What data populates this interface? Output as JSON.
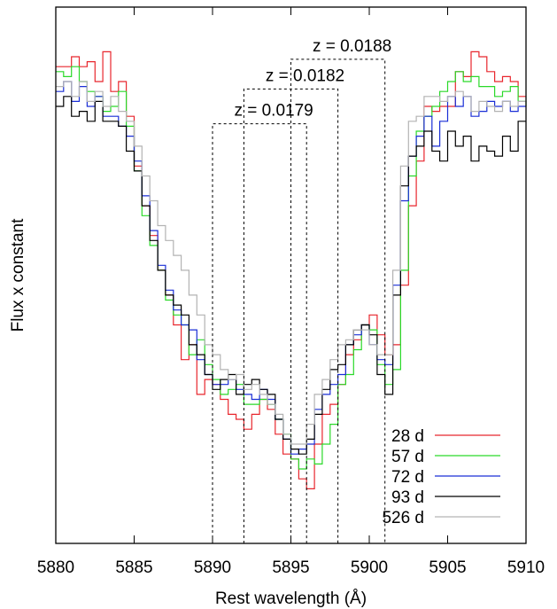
{
  "chart_data": {
    "type": "line",
    "xlabel": "Rest wavelength (Å)",
    "ylabel": "Flux x constant",
    "xlim": [
      5880,
      5910
    ],
    "ylim": [
      0,
      1.08
    ],
    "x_ticks": [
      "5880",
      "5885",
      "5890",
      "5895",
      "5900",
      "5905",
      "5910"
    ],
    "x_tick_values": [
      5880,
      5885,
      5890,
      5895,
      5900,
      5905,
      5910
    ],
    "y_ticks_shown": false,
    "legend_position": "bottom-right",
    "annotations": [
      {
        "label": "z = 0.0179",
        "lines": [
          5890,
          5896
        ]
      },
      {
        "label": "z = 0.0182",
        "lines": [
          5892,
          5898
        ]
      },
      {
        "label": "z = 0.0188",
        "lines": [
          5895,
          5901
        ]
      }
    ],
    "annotation_heights": [
      0.845,
      0.915,
      0.975
    ],
    "series": [
      {
        "name": "28 d",
        "color": "#e8262d",
        "x": [
          5880,
          5880.5,
          5881,
          5881.5,
          5882,
          5882.5,
          5883,
          5883.5,
          5884,
          5884.5,
          5885,
          5885.5,
          5886,
          5886.5,
          5887,
          5887.5,
          5888,
          5888.5,
          5889,
          5889.5,
          5890,
          5890.5,
          5891,
          5891.5,
          5892,
          5892.5,
          5893,
          5893.5,
          5894,
          5894.5,
          5895,
          5895.5,
          5896,
          5896.5,
          5897,
          5897.5,
          5898,
          5898.5,
          5899,
          5899.5,
          5900,
          5900.5,
          5901,
          5901.5,
          5902,
          5902.5,
          5903,
          5903.5,
          5904,
          5904.5,
          5905,
          5905.5,
          5906,
          5906.5,
          5907,
          5907.5,
          5908,
          5908.5,
          5909,
          5909.5,
          5910
        ],
        "y": [
          0.96,
          0.96,
          0.98,
          0.96,
          0.97,
          0.93,
          0.99,
          0.91,
          0.93,
          0.86,
          0.76,
          0.68,
          0.62,
          0.55,
          0.5,
          0.44,
          0.37,
          0.4,
          0.3,
          0.33,
          0.32,
          0.29,
          0.26,
          0.25,
          0.23,
          0.26,
          0.29,
          0.27,
          0.22,
          0.18,
          0.17,
          0.13,
          0.11,
          0.2,
          0.26,
          0.28,
          0.32,
          0.38,
          0.41,
          0.44,
          0.46,
          0.42,
          0.38,
          0.4,
          0.52,
          0.68,
          0.77,
          0.88,
          0.87,
          0.88,
          0.88,
          0.95,
          0.94,
          0.99,
          0.98,
          0.95,
          0.93,
          0.94,
          0.93,
          0.9,
          0.9
        ]
      },
      {
        "name": "57 d",
        "color": "#2ad929",
        "x": [
          5880,
          5880.5,
          5881,
          5881.5,
          5882,
          5882.5,
          5883,
          5883.5,
          5884,
          5884.5,
          5885,
          5885.5,
          5886,
          5886.5,
          5887,
          5887.5,
          5888,
          5888.5,
          5889,
          5889.5,
          5890,
          5890.5,
          5891,
          5891.5,
          5892,
          5892.5,
          5893,
          5893.5,
          5894,
          5894.5,
          5895,
          5895.5,
          5896,
          5896.5,
          5897,
          5897.5,
          5898,
          5898.5,
          5899,
          5899.5,
          5900,
          5900.5,
          5901,
          5901.5,
          5902,
          5902.5,
          5903,
          5903.5,
          5904,
          5904.5,
          5905,
          5905.5,
          5906,
          5906.5,
          5907,
          5907.5,
          5908,
          5908.5,
          5909,
          5909.5,
          5910
        ],
        "y": [
          0.95,
          0.94,
          0.96,
          0.93,
          0.91,
          0.9,
          0.87,
          0.88,
          0.91,
          0.84,
          0.75,
          0.66,
          0.6,
          0.55,
          0.49,
          0.46,
          0.44,
          0.38,
          0.41,
          0.36,
          0.33,
          0.3,
          0.31,
          0.32,
          0.28,
          0.28,
          0.29,
          0.28,
          0.25,
          0.22,
          0.17,
          0.15,
          0.17,
          0.16,
          0.2,
          0.24,
          0.32,
          0.34,
          0.39,
          0.44,
          0.43,
          0.36,
          0.32,
          0.35,
          0.55,
          0.74,
          0.83,
          0.86,
          0.88,
          0.91,
          0.93,
          0.95,
          0.93,
          0.94,
          0.92,
          0.92,
          0.9,
          0.91,
          0.92,
          0.89,
          0.88
        ]
      },
      {
        "name": "72 d",
        "color": "#1a2ed6",
        "x": [
          5880,
          5880.5,
          5881,
          5881.5,
          5882,
          5882.5,
          5883,
          5883.5,
          5884,
          5884.5,
          5885,
          5885.5,
          5886,
          5886.5,
          5887,
          5887.5,
          5888,
          5888.5,
          5889,
          5889.5,
          5890,
          5890.5,
          5891,
          5891.5,
          5892,
          5892.5,
          5893,
          5893.5,
          5894,
          5894.5,
          5895,
          5895.5,
          5896,
          5896.5,
          5897,
          5897.5,
          5898,
          5898.5,
          5899,
          5899.5,
          5900,
          5900.5,
          5901,
          5901.5,
          5902,
          5902.5,
          5903,
          5903.5,
          5904,
          5904.5,
          5905,
          5905.5,
          5906,
          5906.5,
          5907,
          5907.5,
          5908,
          5908.5,
          5909,
          5909.5,
          5910
        ],
        "y": [
          0.91,
          0.93,
          0.89,
          0.92,
          0.88,
          0.9,
          0.86,
          0.86,
          0.84,
          0.82,
          0.77,
          0.7,
          0.63,
          0.56,
          0.51,
          0.47,
          0.44,
          0.43,
          0.37,
          0.34,
          0.32,
          0.32,
          0.33,
          0.31,
          0.3,
          0.29,
          0.31,
          0.29,
          0.25,
          0.21,
          0.18,
          0.19,
          0.2,
          0.27,
          0.3,
          0.32,
          0.34,
          0.4,
          0.42,
          0.44,
          0.4,
          0.37,
          0.36,
          0.52,
          0.69,
          0.78,
          0.82,
          0.86,
          0.8,
          0.85,
          0.9,
          0.88,
          0.9,
          0.86,
          0.87,
          0.89,
          0.88,
          0.89,
          0.87,
          0.88,
          0.88
        ]
      },
      {
        "name": "93 d",
        "color": "#000000",
        "x": [
          5880,
          5880.5,
          5881,
          5881.5,
          5882,
          5882.5,
          5883,
          5883.5,
          5884,
          5884.5,
          5885,
          5885.5,
          5886,
          5886.5,
          5887,
          5887.5,
          5888,
          5888.5,
          5889,
          5889.5,
          5890,
          5890.5,
          5891,
          5891.5,
          5892,
          5892.5,
          5893,
          5893.5,
          5894,
          5894.5,
          5895,
          5895.5,
          5896,
          5896.5,
          5897,
          5897.5,
          5898,
          5898.5,
          5899,
          5899.5,
          5900,
          5900.5,
          5901,
          5901.5,
          5902,
          5902.5,
          5903,
          5903.5,
          5904,
          5904.5,
          5905,
          5905.5,
          5906,
          5906.5,
          5907,
          5907.5,
          5908,
          5908.5,
          5909,
          5909.5,
          5910
        ],
        "y": [
          0.88,
          0.9,
          0.86,
          0.87,
          0.85,
          0.89,
          0.85,
          0.85,
          0.84,
          0.79,
          0.75,
          0.68,
          0.61,
          0.55,
          0.5,
          0.48,
          0.46,
          0.4,
          0.38,
          0.34,
          0.31,
          0.33,
          0.34,
          0.3,
          0.32,
          0.33,
          0.31,
          0.3,
          0.25,
          0.21,
          0.19,
          0.18,
          0.21,
          0.26,
          0.31,
          0.35,
          0.36,
          0.4,
          0.43,
          0.44,
          0.42,
          0.34,
          0.3,
          0.5,
          0.72,
          0.78,
          0.8,
          0.83,
          0.79,
          0.77,
          0.83,
          0.8,
          0.82,
          0.77,
          0.8,
          0.79,
          0.78,
          0.82,
          0.79,
          0.85,
          0.85
        ]
      },
      {
        "name": "526 d",
        "color": "#b3b3b3",
        "x": [
          5880,
          5880.5,
          5881,
          5881.5,
          5882,
          5882.5,
          5883,
          5883.5,
          5884,
          5884.5,
          5885,
          5885.5,
          5886,
          5886.5,
          5887,
          5887.5,
          5888,
          5888.5,
          5889,
          5889.5,
          5890,
          5890.5,
          5891,
          5891.5,
          5892,
          5892.5,
          5893,
          5893.5,
          5894,
          5894.5,
          5895,
          5895.5,
          5896,
          5896.5,
          5897,
          5897.5,
          5898,
          5898.5,
          5899,
          5899.5,
          5900,
          5900.5,
          5901,
          5901.5,
          5902,
          5902.5,
          5903,
          5903.5,
          5904,
          5904.5,
          5905,
          5905.5,
          5906,
          5906.5,
          5907,
          5907.5,
          5908,
          5908.5,
          5909,
          5909.5,
          5910
        ],
        "y": [
          0.92,
          0.93,
          0.9,
          0.93,
          0.89,
          0.91,
          0.88,
          0.9,
          0.87,
          0.85,
          0.8,
          0.74,
          0.69,
          0.64,
          0.61,
          0.58,
          0.55,
          0.5,
          0.46,
          0.4,
          0.38,
          0.35,
          0.33,
          0.34,
          0.31,
          0.32,
          0.3,
          0.28,
          0.26,
          0.22,
          0.2,
          0.2,
          0.24,
          0.3,
          0.33,
          0.37,
          0.4,
          0.41,
          0.43,
          0.43,
          0.4,
          0.38,
          0.38,
          0.55,
          0.76,
          0.85,
          0.86,
          0.9,
          0.9,
          0.89,
          0.9,
          0.91,
          0.9,
          0.87,
          0.89,
          0.88,
          0.87,
          0.89,
          0.88,
          0.89,
          0.9
        ]
      }
    ]
  }
}
